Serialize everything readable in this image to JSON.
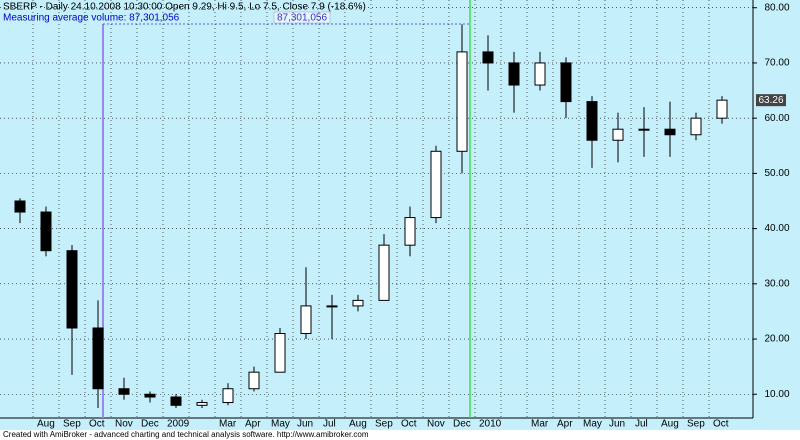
{
  "chart_data": {
    "type": "candlestick",
    "title": "SBERP - Daily 24.10.2008 10:30:00 Open 9.29, Hi 9.5, Lo 7.5, Close 7.9 (-18.6%)",
    "annotation": "Measuring average volume: 87,301,056",
    "annotation_value": "87,301,056",
    "footer": "Created with AmiBroker - advanced charting and technical analysis software. http://www.amibroker.com",
    "categories": [
      null,
      "Aug",
      "Sep",
      "Oct",
      "Nov",
      "Dec",
      "2009",
      null,
      "Mar",
      "Apr",
      "May",
      "Jun",
      "Jul",
      "Aug",
      "Sep",
      "Oct",
      "Nov",
      "Dec",
      "2010",
      null,
      "Mar",
      "Apr",
      "May",
      "Jun",
      "Jul",
      "Aug",
      "Sep",
      "Oct"
    ],
    "open": [
      45,
      43,
      36,
      22,
      11,
      10,
      9.5,
      8,
      8.5,
      11,
      14,
      21,
      26,
      26,
      27,
      37,
      42,
      54,
      72,
      70,
      66,
      70,
      63,
      56,
      58,
      58,
      57,
      60
    ],
    "high": [
      45.5,
      44,
      37,
      27,
      13,
      10.5,
      10,
      9,
      12,
      15,
      22,
      33,
      28,
      28,
      39,
      44,
      55,
      77,
      75,
      72,
      72,
      71,
      64,
      61,
      62,
      63,
      61,
      64
    ],
    "low": [
      41,
      35,
      13.5,
      7.5,
      9,
      8.5,
      7.5,
      7.5,
      8,
      10.5,
      14,
      20,
      20,
      25,
      27,
      35,
      41,
      50,
      65,
      61,
      65,
      60,
      51,
      52,
      53,
      53,
      56,
      59
    ],
    "close": [
      43,
      36,
      22,
      11,
      10,
      9.5,
      8,
      8.5,
      11,
      14,
      21,
      26,
      26,
      27,
      37,
      42,
      54,
      72,
      70,
      66,
      70,
      63,
      56,
      58,
      58,
      57,
      60,
      63.26
    ],
    "ylim": [
      5.7,
      81.4
    ],
    "yticks": [
      {
        "value": 10,
        "label": "10.00"
      },
      {
        "value": 20,
        "label": "20.00"
      },
      {
        "value": 30,
        "label": "30.00"
      },
      {
        "value": 40,
        "label": "40.00"
      },
      {
        "value": 50,
        "label": "50.00"
      },
      {
        "value": 60,
        "label": "60.00"
      },
      {
        "value": 70,
        "label": "70.00"
      },
      {
        "value": 80,
        "label": "80.00"
      }
    ],
    "grid": true,
    "up_color": "#ffffff",
    "down_color": "#000000"
  }
}
